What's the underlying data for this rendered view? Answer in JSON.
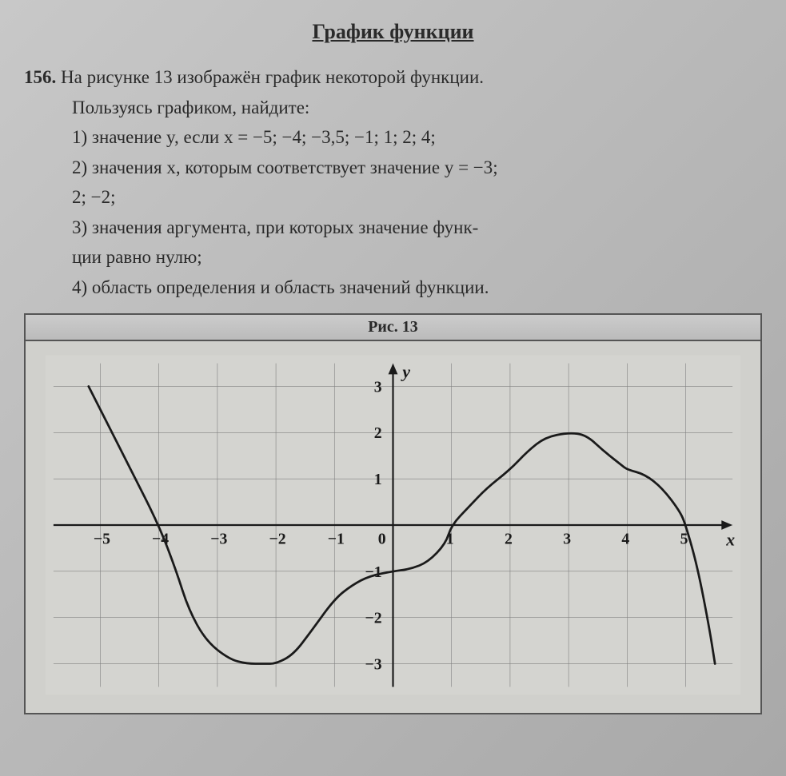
{
  "title": "График функции",
  "problem": {
    "number": "156.",
    "intro_line1": "На рисунке 13 изображён график некоторой функции.",
    "intro_line2": "Пользуясь графиком, найдите:",
    "items": [
      "1) значение y, если x = −5; −4; −3,5; −1; 1; 2; 4;",
      "2) значения x, которым соответствует значение y = −3;",
      "2; −2;",
      "3) значения аргумента, при которых значение функ-",
      "ции равно нулю;",
      "4) область определения и область значений функции."
    ]
  },
  "figure": {
    "caption": "Рис. 13",
    "chart": {
      "type": "line",
      "xlim": [
        -5.8,
        5.8
      ],
      "ylim": [
        -3.5,
        3.5
      ],
      "xtick_step": 1,
      "ytick_step": 1,
      "x_ticks": [
        -5,
        -4,
        -3,
        -2,
        -1,
        0,
        1,
        2,
        3,
        4,
        5
      ],
      "y_ticks": [
        -3,
        -2,
        -1,
        1,
        2,
        3
      ],
      "x_axis_label": "x",
      "y_axis_label": "y",
      "origin_label": "0",
      "background_color": "#d4d4d0",
      "grid_color": "#808080",
      "grid_width": 0.6,
      "axis_color": "#1a1a1a",
      "axis_width": 2.2,
      "curve_color": "#1a1a1a",
      "curve_width": 2.8,
      "tick_font_size": 20,
      "axis_label_font_size": 22,
      "curve_points": [
        [
          -5.2,
          3.0
        ],
        [
          -5.0,
          2.5
        ],
        [
          -4.5,
          1.25
        ],
        [
          -4.0,
          0.0
        ],
        [
          -3.7,
          -1.0
        ],
        [
          -3.5,
          -1.8
        ],
        [
          -3.2,
          -2.5
        ],
        [
          -2.8,
          -2.9
        ],
        [
          -2.5,
          -3.0
        ],
        [
          -2.2,
          -3.0
        ],
        [
          -2.0,
          -3.0
        ],
        [
          -1.7,
          -2.8
        ],
        [
          -1.4,
          -2.3
        ],
        [
          -1.0,
          -1.6
        ],
        [
          -0.7,
          -1.3
        ],
        [
          -0.4,
          -1.1
        ],
        [
          0.0,
          -1.0
        ],
        [
          0.3,
          -0.95
        ],
        [
          0.6,
          -0.8
        ],
        [
          0.9,
          -0.4
        ],
        [
          1.0,
          0.0
        ],
        [
          1.3,
          0.4
        ],
        [
          1.6,
          0.8
        ],
        [
          2.0,
          1.2
        ],
        [
          2.3,
          1.6
        ],
        [
          2.6,
          1.9
        ],
        [
          3.0,
          2.0
        ],
        [
          3.3,
          1.95
        ],
        [
          3.6,
          1.6
        ],
        [
          3.9,
          1.3
        ],
        [
          4.0,
          1.2
        ],
        [
          4.3,
          1.1
        ],
        [
          4.6,
          0.8
        ],
        [
          4.9,
          0.3
        ],
        [
          5.0,
          0.0
        ],
        [
          5.2,
          -0.9
        ],
        [
          5.4,
          -2.2
        ],
        [
          5.5,
          -3.0
        ]
      ]
    }
  }
}
